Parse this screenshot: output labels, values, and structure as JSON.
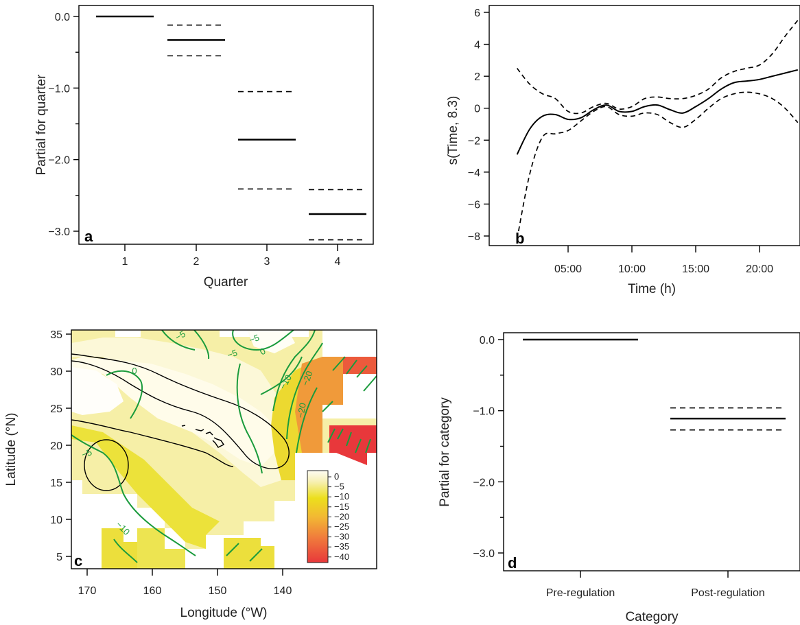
{
  "chart_data": [
    {
      "panel": "a",
      "type": "line",
      "xlabel": "Quarter",
      "ylabel": "Partial for quarter",
      "categories": [
        "1",
        "2",
        "3",
        "4"
      ],
      "estimate": [
        0.0,
        -0.33,
        -1.72,
        -2.76
      ],
      "upper": [
        null,
        -0.12,
        -1.05,
        -2.42
      ],
      "lower": [
        null,
        -0.55,
        -2.41,
        -3.12
      ],
      "yticks": [
        "0.0",
        "-1.0",
        "-2.0",
        "-3.0"
      ],
      "ylim": [
        -3.2,
        0.08
      ],
      "grid": false
    },
    {
      "panel": "b",
      "type": "line",
      "xlabel": "Time (h)",
      "ylabel": "s(Time, 8.3)",
      "xticks": [
        "05:00",
        "10:00",
        "15:00",
        "20:00"
      ],
      "yticks": [
        "6",
        "4",
        "2",
        "0",
        "-2",
        "-4",
        "-6",
        "-8"
      ],
      "xlim": [
        0,
        23.5
      ],
      "ylim": [
        -9,
        6.5
      ],
      "x": [
        1,
        2,
        3,
        4,
        5,
        6,
        7,
        8,
        9,
        10,
        11,
        12,
        13,
        14,
        15,
        16,
        17,
        18,
        19,
        20,
        21,
        22,
        23
      ],
      "series": [
        {
          "role": "estimate",
          "values": [
            -2.9,
            -1.3,
            -0.5,
            -0.4,
            -0.7,
            -0.6,
            -0.1,
            0.2,
            -0.2,
            -0.2,
            0.1,
            0.2,
            -0.1,
            -0.3,
            0.1,
            0.6,
            1.2,
            1.6,
            1.7,
            1.8,
            2.0,
            2.2,
            2.4
          ]
        },
        {
          "role": "upper",
          "values": [
            2.5,
            1.5,
            0.9,
            0.6,
            -0.2,
            -0.3,
            0.1,
            0.3,
            -0.05,
            0.1,
            0.6,
            0.7,
            0.6,
            0.6,
            0.8,
            1.2,
            1.9,
            2.3,
            2.5,
            2.7,
            3.4,
            4.5,
            5.5
          ]
        },
        {
          "role": "lower",
          "values": [
            -8.2,
            -4.1,
            -1.8,
            -1.6,
            -1.4,
            -0.8,
            -0.2,
            0.1,
            -0.4,
            -0.5,
            -0.3,
            -0.4,
            -0.9,
            -1.2,
            -0.7,
            0.0,
            0.6,
            0.9,
            1.0,
            0.9,
            0.6,
            0.0,
            -0.9
          ]
        }
      ],
      "grid": false
    },
    {
      "panel": "c",
      "type": "heatmap",
      "xlabel": "Longitude (°W)",
      "ylabel": "Latitude (°N)",
      "xticks": [
        "170",
        "160",
        "150",
        "140"
      ],
      "yticks": [
        "35",
        "30",
        "25",
        "20",
        "15",
        "10",
        "5"
      ],
      "xlim": [
        175,
        135
      ],
      "ylim": [
        2.5,
        36
      ],
      "colorbar_ticks": [
        "0",
        "-5",
        "-10",
        "-15",
        "-20",
        "-25",
        "-30",
        "-35",
        "-40"
      ],
      "colorbar_range": [
        -42,
        2
      ],
      "contour_labels": [
        "-5",
        "0",
        "-5",
        "0",
        "-5",
        "-10",
        "-20",
        "-20",
        "-5",
        "-10"
      ],
      "colors": {
        "pale": "#fdfbe6",
        "yellow": "#ecdf1c",
        "orange": "#f08a3c",
        "red": "#e8383b",
        "contour": "#1a9b3c"
      }
    },
    {
      "panel": "d",
      "type": "line",
      "xlabel": "Category",
      "ylabel": "Partial for category",
      "categories": [
        "Pre-regulation",
        "Post-regulation"
      ],
      "estimate": [
        0.0,
        -1.11
      ],
      "upper": [
        null,
        -0.96
      ],
      "lower": [
        null,
        -1.27
      ],
      "yticks": [
        "0.0",
        "-1.0",
        "-2.0",
        "-3.0"
      ],
      "ylim": [
        -3.22,
        0.08
      ],
      "grid": false
    }
  ]
}
